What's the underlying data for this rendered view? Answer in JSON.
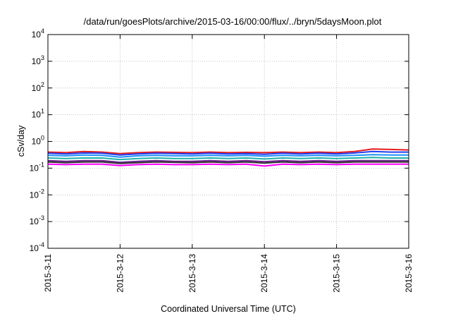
{
  "chart_data": {
    "type": "line",
    "title": "/data/run/goesPlots/archive/2015-03-16/00:00/flux/../bryn/5daysMoon.plot",
    "xlabel": "Coordinated Universal Time (UTC)",
    "ylabel": "cSv/day",
    "yscale": "log",
    "ylim": [
      0.0001,
      10000
    ],
    "xlim": [
      0,
      5
    ],
    "grid": true,
    "x_ticks": [
      {
        "value": 0,
        "label": "2015-3-11"
      },
      {
        "value": 1,
        "label": "2015-3-12"
      },
      {
        "value": 2,
        "label": "2015-3-13"
      },
      {
        "value": 3,
        "label": "2015-3-14"
      },
      {
        "value": 4,
        "label": "2015-3-15"
      },
      {
        "value": 5,
        "label": "2015-3-16"
      }
    ],
    "y_ticks": [
      {
        "value": 0.0001,
        "base": "10",
        "exp": "-4"
      },
      {
        "value": 0.001,
        "base": "10",
        "exp": "-3"
      },
      {
        "value": 0.01,
        "base": "10",
        "exp": "-2"
      },
      {
        "value": 0.1,
        "base": "10",
        "exp": "-1"
      },
      {
        "value": 1,
        "base": "10",
        "exp": "0"
      },
      {
        "value": 10,
        "base": "10",
        "exp": "1"
      },
      {
        "value": 100,
        "base": "10",
        "exp": "2"
      },
      {
        "value": 1000,
        "base": "10",
        "exp": "3"
      },
      {
        "value": 10000,
        "base": "10",
        "exp": "4"
      }
    ],
    "x_days": [
      0,
      0.25,
      0.5,
      0.75,
      1,
      1.25,
      1.5,
      1.75,
      2,
      2.25,
      2.5,
      2.75,
      3,
      3.25,
      3.5,
      3.75,
      4,
      4.25,
      4.5,
      4.75,
      5
    ],
    "series": [
      {
        "color": "#e41a1c",
        "values": [
          0.4,
          0.38,
          0.42,
          0.4,
          0.35,
          0.38,
          0.4,
          0.39,
          0.38,
          0.4,
          0.38,
          0.39,
          0.38,
          0.4,
          0.38,
          0.4,
          0.38,
          0.42,
          0.52,
          0.5,
          0.48
        ]
      },
      {
        "color": "#1f3ff0",
        "values": [
          0.36,
          0.34,
          0.37,
          0.36,
          0.31,
          0.34,
          0.36,
          0.35,
          0.34,
          0.36,
          0.34,
          0.35,
          0.33,
          0.36,
          0.34,
          0.36,
          0.34,
          0.37,
          0.42,
          0.4,
          0.4
        ]
      },
      {
        "color": "#1e90ff",
        "values": [
          0.3,
          0.29,
          0.31,
          0.3,
          0.26,
          0.29,
          0.3,
          0.29,
          0.29,
          0.3,
          0.29,
          0.3,
          0.28,
          0.3,
          0.29,
          0.3,
          0.29,
          0.3,
          0.32,
          0.31,
          0.31
        ]
      },
      {
        "color": "#20b2aa",
        "values": [
          0.24,
          0.23,
          0.24,
          0.24,
          0.21,
          0.23,
          0.24,
          0.23,
          0.23,
          0.24,
          0.23,
          0.24,
          0.22,
          0.24,
          0.23,
          0.24,
          0.23,
          0.24,
          0.25,
          0.24,
          0.24
        ]
      },
      {
        "color": "#6b238e",
        "values": [
          0.19,
          0.18,
          0.19,
          0.19,
          0.165,
          0.18,
          0.19,
          0.18,
          0.18,
          0.19,
          0.18,
          0.19,
          0.175,
          0.19,
          0.18,
          0.19,
          0.18,
          0.19,
          0.19,
          0.19,
          0.19
        ]
      },
      {
        "color": "#333333",
        "values": [
          0.17,
          0.16,
          0.17,
          0.17,
          0.15,
          0.16,
          0.17,
          0.165,
          0.16,
          0.17,
          0.16,
          0.17,
          0.155,
          0.17,
          0.16,
          0.17,
          0.16,
          0.17,
          0.17,
          0.17,
          0.17
        ]
      },
      {
        "color": "#ff00ff",
        "values": [
          0.14,
          0.135,
          0.14,
          0.14,
          0.125,
          0.135,
          0.14,
          0.135,
          0.135,
          0.14,
          0.135,
          0.14,
          0.12,
          0.14,
          0.135,
          0.14,
          0.135,
          0.14,
          0.14,
          0.14,
          0.14
        ]
      }
    ]
  }
}
